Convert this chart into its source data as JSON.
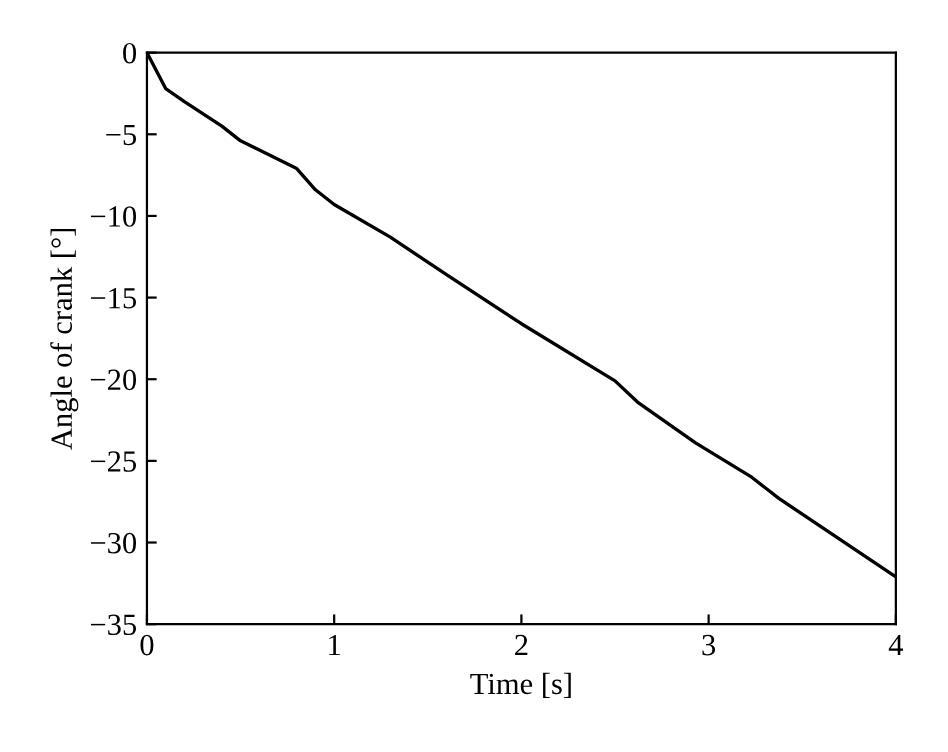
{
  "chart_data": {
    "type": "line",
    "xlabel": "Time [s]",
    "ylabel": "Angle of crank [°]",
    "x": [
      0,
      0.1,
      0.2,
      0.4,
      0.5,
      0.8,
      0.9,
      1.0,
      1.3,
      1.6,
      2.0,
      2.5,
      2.62,
      2.93,
      3.23,
      3.375,
      4.0
    ],
    "series": [
      {
        "color": "#000000",
        "values": [
          0,
          -2.2,
          -3.0,
          -4.5,
          -5.4,
          -7.1,
          -8.4,
          -9.3,
          -11.3,
          -13.6,
          -16.6,
          -20.1,
          -21.4,
          -23.9,
          -26.0,
          -27.3,
          -32.1
        ]
      }
    ],
    "xlim": [
      0,
      4
    ],
    "ylim": [
      -35,
      0
    ],
    "xticks": [
      0,
      1,
      2,
      3,
      4
    ],
    "yticks": [
      {
        "value": -35,
        "label": "−35"
      },
      {
        "value": -30,
        "label": "−30"
      },
      {
        "value": -25,
        "label": "−25"
      },
      {
        "value": -20,
        "label": "−20"
      },
      {
        "value": -15,
        "label": "−15"
      },
      {
        "value": -10,
        "label": "−10"
      },
      {
        "value": -5,
        "label": "−5"
      },
      0
    ],
    "grid": false
  }
}
